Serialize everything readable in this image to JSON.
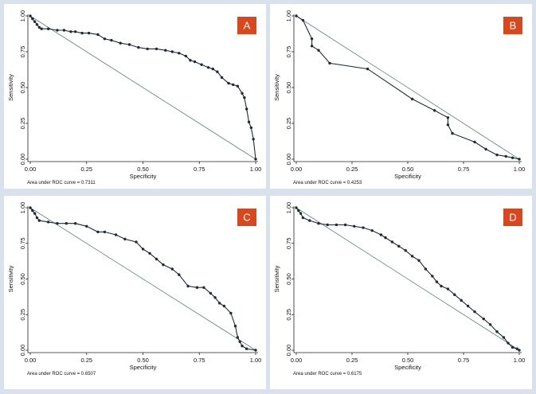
{
  "chart_data": [
    {
      "type": "line",
      "panel_label": "A",
      "xlabel": "Specificity",
      "ylabel": "Sensitivity",
      "xlim": [
        0,
        1
      ],
      "ylim": [
        0,
        1
      ],
      "xticks": [
        "0.00",
        "0.25",
        "0.50",
        "0.75",
        "1.00"
      ],
      "yticks": [
        "0.00",
        "0.25",
        "0.50",
        "0.75",
        "1.00"
      ],
      "area_note": "Area under ROC curve = 0.7311",
      "reference_line": {
        "x": [
          0,
          1
        ],
        "y": [
          1,
          0
        ]
      },
      "series": [
        {
          "name": "ROC",
          "x": [
            0,
            0.01,
            0.02,
            0.03,
            0.04,
            0.05,
            0.08,
            0.12,
            0.15,
            0.18,
            0.2,
            0.23,
            0.26,
            0.3,
            0.33,
            0.36,
            0.4,
            0.44,
            0.48,
            0.52,
            0.56,
            0.6,
            0.63,
            0.66,
            0.69,
            0.71,
            0.73,
            0.76,
            0.79,
            0.81,
            0.83,
            0.85,
            0.88,
            0.9,
            0.92,
            0.94,
            0.95,
            0.96,
            0.97,
            0.98,
            0.99,
            1.0
          ],
          "y": [
            1.0,
            0.98,
            0.96,
            0.94,
            0.92,
            0.91,
            0.91,
            0.9,
            0.9,
            0.89,
            0.89,
            0.88,
            0.88,
            0.87,
            0.84,
            0.83,
            0.81,
            0.8,
            0.78,
            0.77,
            0.77,
            0.76,
            0.75,
            0.74,
            0.72,
            0.69,
            0.68,
            0.66,
            0.64,
            0.63,
            0.61,
            0.57,
            0.53,
            0.52,
            0.51,
            0.46,
            0.43,
            0.35,
            0.26,
            0.22,
            0.14,
            0.0
          ]
        }
      ]
    },
    {
      "type": "line",
      "panel_label": "B",
      "xlabel": "Specificity",
      "ylabel": "Sensitivity",
      "xlim": [
        0,
        1
      ],
      "ylim": [
        0,
        1
      ],
      "xticks": [
        "0.00",
        "0.25",
        "0.50",
        "0.75",
        "1.00"
      ],
      "yticks": [
        "0.00",
        "0.25",
        "0.50",
        "0.75",
        "1.00"
      ],
      "area_note": "Area under ROC curve = 0.4253",
      "reference_line": {
        "x": [
          0,
          1
        ],
        "y": [
          1,
          0
        ]
      },
      "series": [
        {
          "name": "ROC",
          "x": [
            0,
            0.03,
            0.07,
            0.07,
            0.1,
            0.15,
            0.32,
            0.52,
            0.62,
            0.68,
            0.68,
            0.7,
            0.8,
            0.85,
            0.9,
            0.94,
            0.97,
            1.0
          ],
          "y": [
            1.0,
            0.97,
            0.84,
            0.79,
            0.76,
            0.67,
            0.63,
            0.42,
            0.34,
            0.29,
            0.24,
            0.18,
            0.12,
            0.07,
            0.03,
            0.02,
            0.01,
            0.0
          ]
        }
      ]
    },
    {
      "type": "line",
      "panel_label": "C",
      "xlabel": "Specificity",
      "ylabel": "Sensitivity",
      "xlim": [
        0,
        1
      ],
      "ylim": [
        0,
        1
      ],
      "xticks": [
        "0.00",
        "0.25",
        "0.50",
        "0.75",
        "1.00"
      ],
      "yticks": [
        "0.00",
        "0.25",
        "0.50",
        "0.75",
        "1.00"
      ],
      "area_note": "Area under ROC curve = 0.6507",
      "reference_line": {
        "x": [
          0,
          1
        ],
        "y": [
          1,
          0
        ]
      },
      "series": [
        {
          "name": "ROC",
          "x": [
            0,
            0.01,
            0.02,
            0.03,
            0.04,
            0.08,
            0.12,
            0.16,
            0.2,
            0.25,
            0.3,
            0.33,
            0.38,
            0.42,
            0.47,
            0.5,
            0.53,
            0.56,
            0.59,
            0.63,
            0.66,
            0.7,
            0.74,
            0.77,
            0.8,
            0.82,
            0.84,
            0.86,
            0.89,
            0.91,
            0.92,
            0.93,
            0.94,
            0.96,
            1.0
          ],
          "y": [
            1.0,
            0.98,
            0.96,
            0.93,
            0.91,
            0.9,
            0.89,
            0.89,
            0.89,
            0.87,
            0.83,
            0.83,
            0.81,
            0.78,
            0.76,
            0.71,
            0.68,
            0.64,
            0.6,
            0.57,
            0.53,
            0.45,
            0.44,
            0.44,
            0.4,
            0.37,
            0.33,
            0.31,
            0.26,
            0.17,
            0.09,
            0.06,
            0.03,
            0.01,
            0.0
          ]
        }
      ]
    },
    {
      "type": "line",
      "panel_label": "D",
      "xlabel": "Specificity",
      "ylabel": "Sensitivity",
      "xlim": [
        0,
        1
      ],
      "ylim": [
        0,
        1
      ],
      "xticks": [
        "0.00",
        "0.25",
        "0.50",
        "0.75",
        "1.00"
      ],
      "yticks": [
        "0.00",
        "0.25",
        "0.50",
        "0.75",
        "1.00"
      ],
      "area_note": "Area under ROC curve = 0.6175",
      "reference_line": {
        "x": [
          0,
          1
        ],
        "y": [
          1,
          0
        ]
      },
      "series": [
        {
          "name": "ROC",
          "x": [
            0,
            0.01,
            0.02,
            0.03,
            0.06,
            0.1,
            0.14,
            0.18,
            0.22,
            0.26,
            0.3,
            0.34,
            0.38,
            0.4,
            0.43,
            0.46,
            0.49,
            0.52,
            0.55,
            0.58,
            0.61,
            0.63,
            0.65,
            0.68,
            0.71,
            0.74,
            0.77,
            0.8,
            0.84,
            0.87,
            0.9,
            0.93,
            0.95,
            0.97,
            0.99,
            1.0
          ],
          "y": [
            1.0,
            0.98,
            0.96,
            0.93,
            0.91,
            0.89,
            0.88,
            0.88,
            0.88,
            0.87,
            0.86,
            0.84,
            0.81,
            0.79,
            0.76,
            0.73,
            0.7,
            0.66,
            0.63,
            0.57,
            0.52,
            0.48,
            0.45,
            0.43,
            0.39,
            0.35,
            0.31,
            0.27,
            0.22,
            0.18,
            0.13,
            0.09,
            0.05,
            0.02,
            0.01,
            0.0
          ]
        }
      ]
    }
  ]
}
